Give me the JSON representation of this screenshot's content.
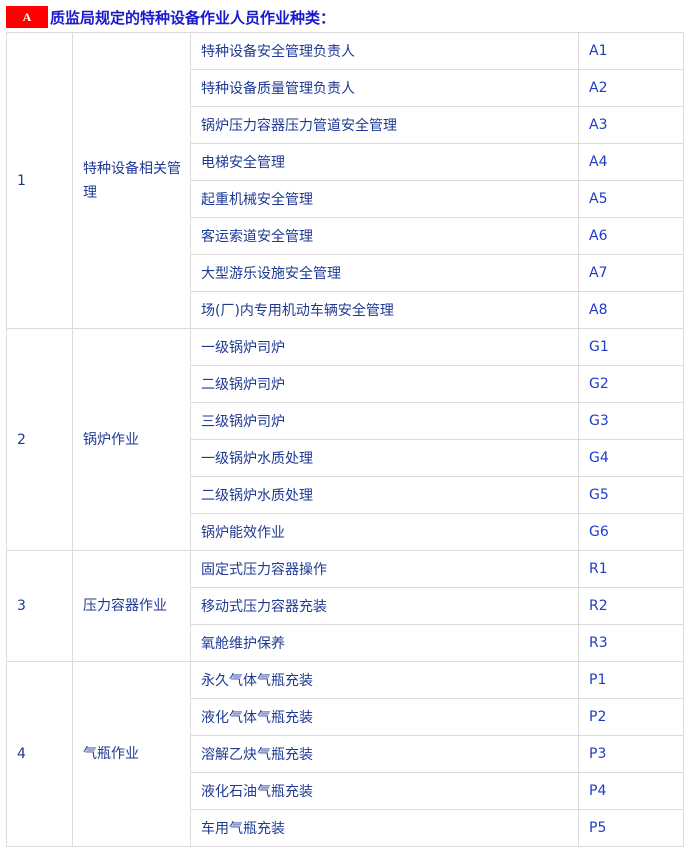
{
  "title": {
    "badge": "A",
    "text": "质监局规定的特种设备作业人员作业种类："
  },
  "groups": [
    {
      "no": "1",
      "name": "特种设备相关管理",
      "items": [
        {
          "name": "特种设备安全管理负责人",
          "code": "A1"
        },
        {
          "name": "特种设备质量管理负责人",
          "code": "A2"
        },
        {
          "name": "锅炉压力容器压力管道安全管理",
          "code": "A3"
        },
        {
          "name": "电梯安全管理",
          "code": "A4"
        },
        {
          "name": "起重机械安全管理",
          "code": "A5"
        },
        {
          "name": "客运索道安全管理",
          "code": "A6"
        },
        {
          "name": "大型游乐设施安全管理",
          "code": "A7"
        },
        {
          "name": "场(厂)内专用机动车辆安全管理",
          "code": "A8"
        }
      ]
    },
    {
      "no": "2",
      "name": "锅炉作业",
      "items": [
        {
          "name": "一级锅炉司炉",
          "code": "G1"
        },
        {
          "name": "二级锅炉司炉",
          "code": "G2"
        },
        {
          "name": "三级锅炉司炉",
          "code": "G3"
        },
        {
          "name": "一级锅炉水质处理",
          "code": "G4"
        },
        {
          "name": "二级锅炉水质处理",
          "code": "G5"
        },
        {
          "name": "锅炉能效作业",
          "code": "G6"
        }
      ]
    },
    {
      "no": "3",
      "name": "压力容器作业",
      "items": [
        {
          "name": "固定式压力容器操作",
          "code": "R1"
        },
        {
          "name": "移动式压力容器充装",
          "code": "R2"
        },
        {
          "name": "氧舱维护保养",
          "code": "R3"
        }
      ]
    },
    {
      "no": "4",
      "name": "气瓶作业",
      "items": [
        {
          "name": "永久气体气瓶充装",
          "code": "P1"
        },
        {
          "name": "液化气体气瓶充装",
          "code": "P2"
        },
        {
          "name": "溶解乙炔气瓶充装",
          "code": "P3"
        },
        {
          "name": "液化石油气瓶充装",
          "code": "P4"
        },
        {
          "name": "车用气瓶充装",
          "code": "P5"
        }
      ]
    }
  ]
}
